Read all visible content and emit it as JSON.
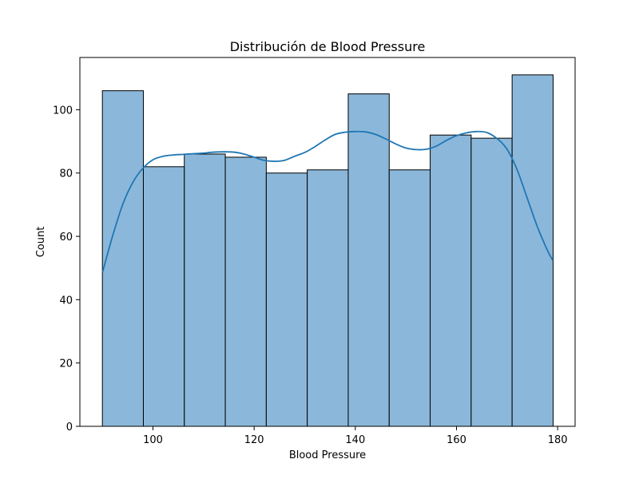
{
  "chart_data": {
    "type": "bar",
    "title": "Distribución de Blood Pressure",
    "xlabel": "Blood Pressure",
    "ylabel": "Count",
    "xlim": [
      85.55,
      183.45
    ],
    "ylim": [
      0,
      116.5
    ],
    "xticks": [
      100,
      120,
      140,
      160,
      180
    ],
    "yticks": [
      0,
      20,
      40,
      60,
      80,
      100
    ],
    "grid": false,
    "bar_color": "#8bb8da",
    "bar_edge_color": "#000000",
    "kde_color": "#1f77b4",
    "bins": [
      {
        "x0": 90.0,
        "x1": 98.1,
        "count": 106
      },
      {
        "x0": 98.1,
        "x1": 106.2,
        "count": 82
      },
      {
        "x0": 106.2,
        "x1": 114.3,
        "count": 86
      },
      {
        "x0": 114.3,
        "x1": 122.4,
        "count": 85
      },
      {
        "x0": 122.4,
        "x1": 130.5,
        "count": 80
      },
      {
        "x0": 130.5,
        "x1": 138.6,
        "count": 81
      },
      {
        "x0": 138.6,
        "x1": 146.7,
        "count": 105
      },
      {
        "x0": 146.7,
        "x1": 154.8,
        "count": 81
      },
      {
        "x0": 154.8,
        "x1": 162.9,
        "count": 92
      },
      {
        "x0": 162.9,
        "x1": 171.0,
        "count": 91
      },
      {
        "x0": 171.0,
        "x1": 179.1,
        "count": 111
      }
    ],
    "kde": {
      "x": [
        90,
        92,
        94,
        96,
        98,
        100,
        102,
        104,
        106,
        108,
        110,
        112,
        114,
        116,
        118,
        120,
        122,
        124,
        126,
        128,
        130,
        132,
        134,
        136,
        138,
        140,
        142,
        144,
        146,
        148,
        150,
        152,
        154,
        156,
        158,
        160,
        162,
        164,
        166,
        168,
        170,
        172,
        174,
        176,
        178,
        179
      ],
      "y": [
        48.5,
        60,
        70,
        77,
        81.5,
        84.2,
        85.3,
        85.7,
        85.9,
        86.1,
        86.3,
        86.6,
        86.7,
        86.6,
        86,
        85,
        84,
        83.7,
        84,
        85.3,
        86.5,
        88.3,
        90.4,
        92.2,
        92.9,
        93.1,
        93,
        92.2,
        90.8,
        89.2,
        87.9,
        87.4,
        87.5,
        88.5,
        90.3,
        91.8,
        92.7,
        93.1,
        92.8,
        90.9,
        87.5,
        81,
        72,
        63,
        55.5,
        52.5
      ]
    }
  }
}
